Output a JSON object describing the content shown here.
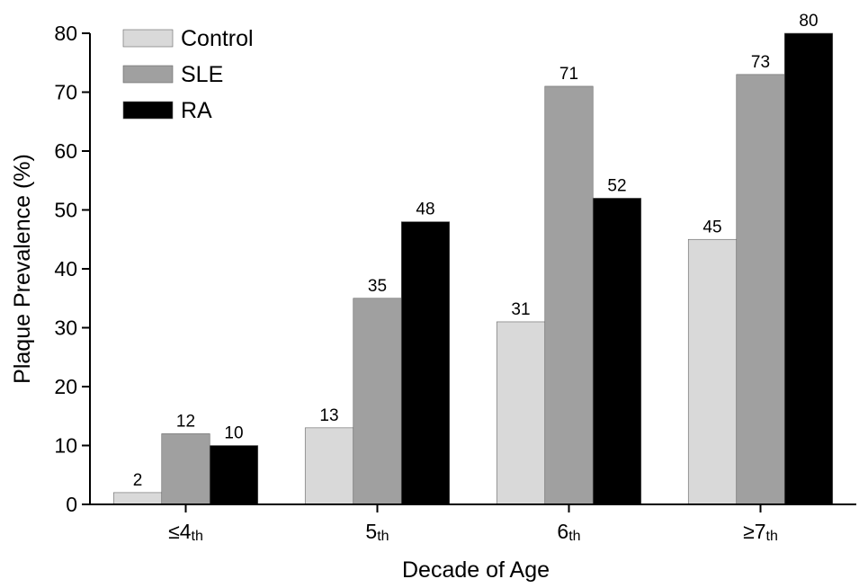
{
  "chart_data": {
    "type": "bar",
    "title": "",
    "xlabel": "Decade of Age",
    "ylabel": "Plaque Prevalence (%)",
    "ylim": [
      0,
      80
    ],
    "yticks": [
      0,
      10,
      20,
      30,
      40,
      50,
      60,
      70,
      80
    ],
    "grid": false,
    "legend_position": "top-left",
    "categories": [
      {
        "prefix": "≤",
        "main": "4",
        "suffix": "th"
      },
      {
        "prefix": "",
        "main": "5",
        "suffix": "th"
      },
      {
        "prefix": "",
        "main": "6",
        "suffix": "th"
      },
      {
        "prefix": "≥",
        "main": "7",
        "suffix": "th"
      }
    ],
    "series": [
      {
        "name": "Control",
        "color": "#d9d9d9",
        "values": [
          2,
          13,
          31,
          45
        ]
      },
      {
        "name": "SLE",
        "color": "#a0a0a0",
        "values": [
          12,
          35,
          71,
          73
        ]
      },
      {
        "name": "RA",
        "color": "#000000",
        "values": [
          10,
          48,
          52,
          80
        ]
      }
    ]
  }
}
